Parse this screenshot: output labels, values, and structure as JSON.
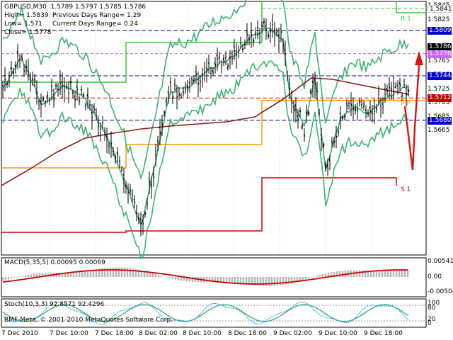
{
  "header": {
    "symbol_line": "GBPUSD,M30  1.5789 1.5797 1.5785 1.5786",
    "high_label": "High= 1.5839",
    "prev_range": "Previous Days Range= 1.29",
    "low_label": "Low= 1.571",
    "cur_range": "Current Days Range= 0.24",
    "close_label": "Close= 1.5778"
  },
  "price_axis": {
    "labels": [
      "1.5845",
      "1.5825",
      "1.5805",
      "1.5785",
      "1.5765",
      "1.5745",
      "1.5725",
      "1.5705",
      "1.5685",
      "1.5665"
    ]
  },
  "price_tags": [
    {
      "value": "1.5841",
      "bg": "#ffffff",
      "fg": "#000000"
    },
    {
      "value": "1.5809",
      "bg": "#0000cc",
      "fg": "#ffffff"
    },
    {
      "value": "1.5786",
      "bg": "#000000",
      "fg": "#ffffff"
    },
    {
      "value": "1.5776",
      "bg": "#cc66ff",
      "fg": "#ffffff"
    },
    {
      "value": "1.5744",
      "bg": "#0000cc",
      "fg": "#ffffff"
    },
    {
      "value": "1.5712",
      "bg": "#cc0000",
      "fg": "#ffffff"
    },
    {
      "value": "1.5680",
      "bg": "#0000cc",
      "fg": "#ffffff"
    }
  ],
  "levels": {
    "r1": "R 1",
    "s1": "S 1",
    "pp": "P P"
  },
  "macd": {
    "label": "MACD(5,35,5) 0.00095 0.00069",
    "axis": [
      "0.00541",
      "0.00",
      "-0.00504"
    ]
  },
  "stoch": {
    "label": "Stoch(10,3,3) 92.8571 92.4296",
    "axis": [
      "100",
      "80",
      "20",
      "0"
    ]
  },
  "copyright": "BMF-Meta, © 2001-2010 MetaQuotes Software Corp.",
  "time_axis": [
    "7 Dec 2010",
    "7 Dec 10:00",
    "7 Dec 18:00",
    "8 Dec 02:00",
    "8 Dec 10:00",
    "8 Dec 18:00",
    "9 Dec 02:00",
    "9 Dec 10:00",
    "9 Dec 18:00"
  ],
  "colors": {
    "bollinger": "#3cb371",
    "ma_long": "#8b1a1a",
    "pivot_orange": "#ff9900",
    "pivot_red": "#cc0000",
    "pivot_green": "#33cc33",
    "macd_hist": "#b4b4b4",
    "macd_signal": "#cc0000",
    "stoch_main": "#1e90ff",
    "stoch_signal": "#3cb371",
    "grid": "#c8c8c8",
    "blue_level": "#000080"
  }
}
